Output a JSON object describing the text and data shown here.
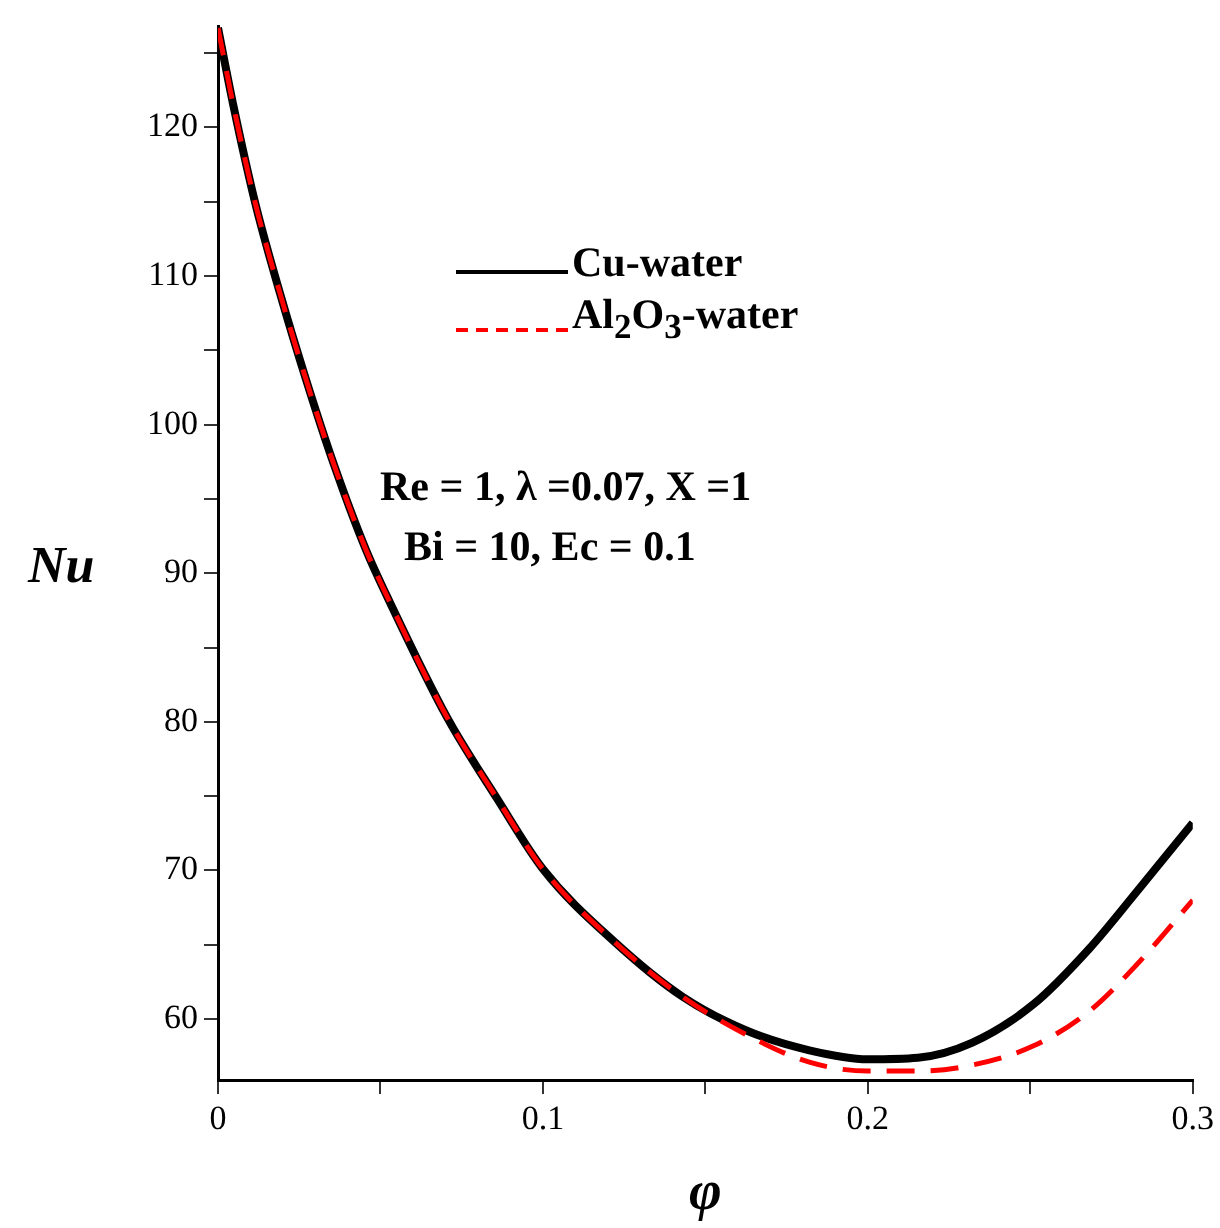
{
  "chart_data": {
    "type": "line",
    "xlabel": "φ",
    "ylabel": "Nu",
    "xlim": [
      0,
      0.3
    ],
    "xticks": [
      0,
      {
        "value": 0.05,
        "label": null
      },
      0.1,
      {
        "value": 0.15,
        "label": null
      },
      0.2,
      {
        "value": 0.25,
        "label": null
      },
      0.3
    ],
    "ylim": [
      55.9,
      126.8
    ],
    "yticks": [
      60,
      {
        "value": 65,
        "label": null
      },
      70,
      {
        "value": 75,
        "label": null
      },
      80,
      {
        "value": 85,
        "label": null
      },
      90,
      {
        "value": 95,
        "label": null
      },
      100,
      {
        "value": 105,
        "label": null
      },
      110,
      {
        "value": 115,
        "label": null
      },
      120,
      {
        "value": 125,
        "label": null
      }
    ],
    "grid": false,
    "legend": "top left",
    "marker": "none",
    "annotations": [
      "Re = 1, λ =0.07, X =1",
      "Bi = 10, Ec = 0.1"
    ],
    "series": [
      {
        "name": "Cu-water",
        "color": "#000000",
        "line_style": "solid",
        "x": [
          0,
          0.0049,
          0.0117,
          0.019,
          0.027,
          0.0357,
          0.0455,
          0.053,
          0.0705,
          0.086,
          0.1,
          0.122,
          0.143,
          0.163,
          0.182,
          0.2,
          0.2154,
          0.232,
          0.251,
          0.268,
          0.2825,
          0.3
        ],
        "values": [
          126.7,
          121.3,
          114.7,
          108.9,
          103.1,
          97.3,
          91.6,
          88,
          80.3,
          74.8,
          70.1,
          65.2,
          61.5,
          59.2,
          57.9,
          57.3,
          57.4,
          58.4,
          61.0,
          64.7,
          68.5,
          73.2
        ]
      },
      {
        "name": "Al$_{2}$O$_{3}$-water",
        "color": "#ff0000",
        "line_style": "dashed",
        "x": [
          0,
          0.0049,
          0.0117,
          0.019,
          0.027,
          0.0357,
          0.0455,
          0.053,
          0.0705,
          0.086,
          0.1,
          0.122,
          0.143,
          0.163,
          0.182,
          0.2,
          0.2154,
          0.232,
          0.251,
          0.268,
          0.2825,
          0.3
        ],
        "values": [
          126.7,
          121.3,
          114.7,
          108.9,
          103.1,
          97.3,
          91.6,
          88,
          80.3,
          74.8,
          70.1,
          65.2,
          61.5,
          58.9,
          57.1,
          56.5,
          56.5,
          56.9,
          58.2,
          60.5,
          63.6,
          68.0
        ]
      }
    ]
  }
}
